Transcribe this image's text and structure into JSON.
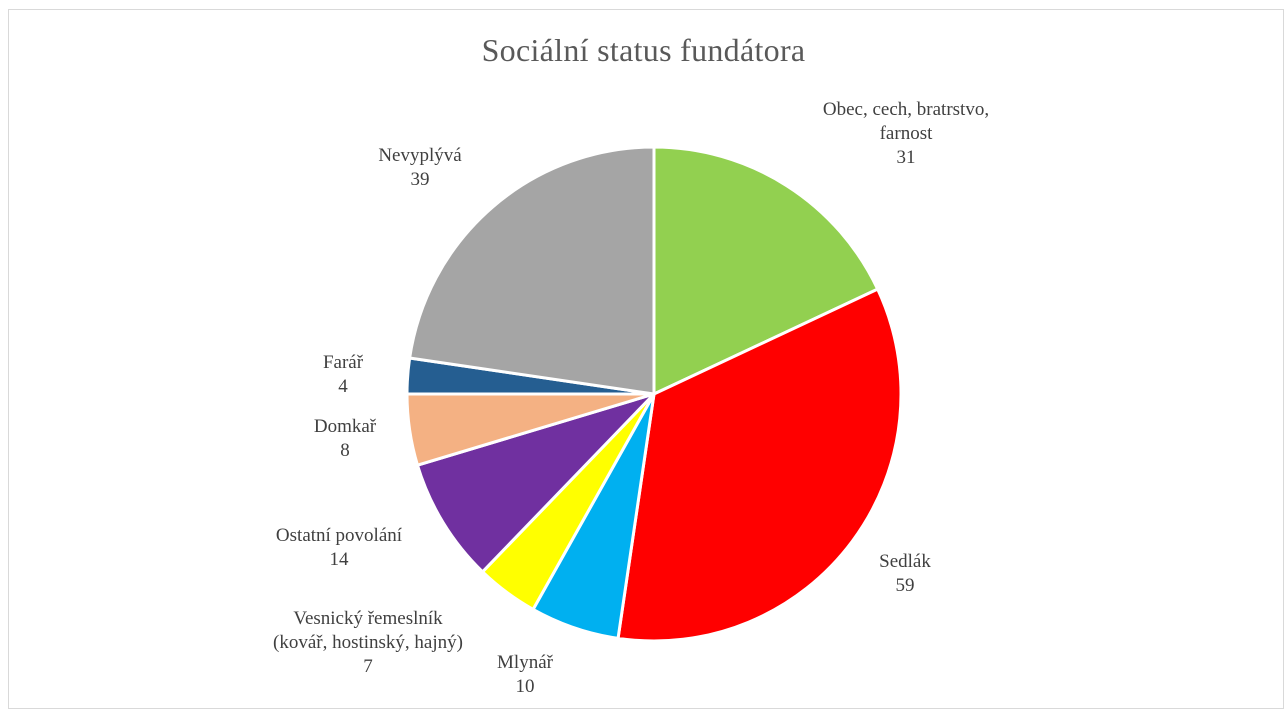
{
  "chart_data": {
    "type": "pie",
    "title": "Sociální status fundátora",
    "slices": [
      {
        "label_lines": [
          "Obec, cech, bratrstvo,",
          "farnost"
        ],
        "value": 31,
        "color": "#92d050"
      },
      {
        "label_lines": [
          "Sedlák"
        ],
        "value": 59,
        "color": "#ff0000"
      },
      {
        "label_lines": [
          "Mlynář"
        ],
        "value": 10,
        "color": "#00b0f0"
      },
      {
        "label_lines": [
          "Vesnický řemeslník",
          "(kovář, hostinský, hajný)"
        ],
        "value": 7,
        "color": "#ffff00"
      },
      {
        "label_lines": [
          "Ostatní povolání"
        ],
        "value": 14,
        "color": "#7030a0"
      },
      {
        "label_lines": [
          "Domkař"
        ],
        "value": 8,
        "color": "#f4b183"
      },
      {
        "label_lines": [
          "Farář"
        ],
        "value": 4,
        "color": "#255e91"
      },
      {
        "label_lines": [
          "Nevyplývá"
        ],
        "value": 39,
        "color": "#a5a5a5"
      }
    ]
  }
}
